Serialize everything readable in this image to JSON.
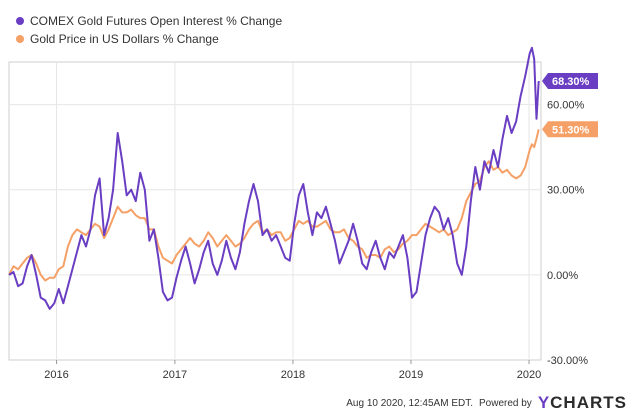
{
  "chart_data": {
    "type": "line",
    "title": "",
    "xlabel": "",
    "ylabel": "",
    "x_range": [
      "2015-08-07",
      "2020-02-07"
    ],
    "ylim": [
      -30,
      75
    ],
    "y_ticks": [
      -30,
      0,
      30,
      60
    ],
    "y_tick_labels": [
      "-30.00%",
      "0.00%",
      "30.00%",
      "60.00%"
    ],
    "x_ticks": [
      "2016-01-01",
      "2017-01-01",
      "2018-01-01",
      "2019-01-01",
      "2020-01-01"
    ],
    "x_tick_labels": [
      "2016",
      "2017",
      "2018",
      "2019",
      "2020"
    ],
    "grid": true,
    "legend_position": "top-left",
    "series": [
      {
        "name": "COMEX Gold Futures Open Interest % Change",
        "color": "#6a3ec2",
        "end_label": "68.30%",
        "points": [
          [
            "2015-08-07",
            0
          ],
          [
            "2015-08-21",
            1
          ],
          [
            "2015-09-04",
            -4
          ],
          [
            "2015-09-18",
            -3
          ],
          [
            "2015-10-02",
            3
          ],
          [
            "2015-10-16",
            7
          ],
          [
            "2015-10-30",
            0
          ],
          [
            "2015-11-13",
            -8
          ],
          [
            "2015-11-27",
            -9
          ],
          [
            "2015-12-11",
            -12
          ],
          [
            "2015-12-25",
            -10
          ],
          [
            "2016-01-08",
            -5
          ],
          [
            "2016-01-22",
            -10
          ],
          [
            "2016-02-05",
            -4
          ],
          [
            "2016-02-19",
            2
          ],
          [
            "2016-03-04",
            8
          ],
          [
            "2016-03-18",
            14
          ],
          [
            "2016-04-01",
            10
          ],
          [
            "2016-04-15",
            16
          ],
          [
            "2016-04-29",
            28
          ],
          [
            "2016-05-13",
            34
          ],
          [
            "2016-05-27",
            14
          ],
          [
            "2016-06-10",
            20
          ],
          [
            "2016-06-24",
            30
          ],
          [
            "2016-07-08",
            50
          ],
          [
            "2016-07-22",
            40
          ],
          [
            "2016-08-05",
            28
          ],
          [
            "2016-08-19",
            30
          ],
          [
            "2016-09-02",
            26
          ],
          [
            "2016-09-16",
            36
          ],
          [
            "2016-09-30",
            30
          ],
          [
            "2016-10-14",
            12
          ],
          [
            "2016-10-28",
            16
          ],
          [
            "2016-11-11",
            6
          ],
          [
            "2016-11-25",
            -6
          ],
          [
            "2016-12-09",
            -9
          ],
          [
            "2016-12-23",
            -8
          ],
          [
            "2017-01-06",
            -1
          ],
          [
            "2017-01-20",
            5
          ],
          [
            "2017-02-03",
            10
          ],
          [
            "2017-02-17",
            4
          ],
          [
            "2017-03-03",
            -3
          ],
          [
            "2017-03-17",
            2
          ],
          [
            "2017-03-31",
            8
          ],
          [
            "2017-04-14",
            12
          ],
          [
            "2017-04-28",
            4
          ],
          [
            "2017-05-12",
            0
          ],
          [
            "2017-05-26",
            5
          ],
          [
            "2017-06-09",
            12
          ],
          [
            "2017-06-23",
            6
          ],
          [
            "2017-07-07",
            2
          ],
          [
            "2017-07-21",
            8
          ],
          [
            "2017-08-04",
            18
          ],
          [
            "2017-08-18",
            26
          ],
          [
            "2017-09-01",
            32
          ],
          [
            "2017-09-15",
            26
          ],
          [
            "2017-09-29",
            14
          ],
          [
            "2017-10-13",
            16
          ],
          [
            "2017-10-27",
            12
          ],
          [
            "2017-11-10",
            14
          ],
          [
            "2017-11-24",
            10
          ],
          [
            "2017-12-08",
            6
          ],
          [
            "2017-12-22",
            5
          ],
          [
            "2018-01-05",
            18
          ],
          [
            "2018-01-19",
            28
          ],
          [
            "2018-02-02",
            32
          ],
          [
            "2018-02-16",
            22
          ],
          [
            "2018-03-02",
            14
          ],
          [
            "2018-03-16",
            22
          ],
          [
            "2018-03-30",
            20
          ],
          [
            "2018-04-13",
            24
          ],
          [
            "2018-04-27",
            18
          ],
          [
            "2018-05-11",
            12
          ],
          [
            "2018-05-25",
            4
          ],
          [
            "2018-06-08",
            8
          ],
          [
            "2018-06-22",
            12
          ],
          [
            "2018-07-06",
            18
          ],
          [
            "2018-07-20",
            12
          ],
          [
            "2018-08-03",
            4
          ],
          [
            "2018-08-17",
            2
          ],
          [
            "2018-08-31",
            8
          ],
          [
            "2018-09-14",
            12
          ],
          [
            "2018-09-28",
            6
          ],
          [
            "2018-10-12",
            2
          ],
          [
            "2018-10-26",
            8
          ],
          [
            "2018-11-09",
            6
          ],
          [
            "2018-11-23",
            10
          ],
          [
            "2018-12-07",
            14
          ],
          [
            "2018-12-21",
            6
          ],
          [
            "2019-01-04",
            -8
          ],
          [
            "2019-01-18",
            -6
          ],
          [
            "2019-02-01",
            4
          ],
          [
            "2019-02-15",
            14
          ],
          [
            "2019-03-01",
            20
          ],
          [
            "2019-03-15",
            24
          ],
          [
            "2019-03-29",
            22
          ],
          [
            "2019-04-12",
            16
          ],
          [
            "2019-04-26",
            20
          ],
          [
            "2019-05-10",
            14
          ],
          [
            "2019-05-24",
            4
          ],
          [
            "2019-06-07",
            0
          ],
          [
            "2019-06-21",
            10
          ],
          [
            "2019-07-05",
            26
          ],
          [
            "2019-07-19",
            38
          ],
          [
            "2019-08-02",
            30
          ],
          [
            "2019-08-16",
            40
          ],
          [
            "2019-08-30",
            36
          ],
          [
            "2019-09-13",
            44
          ],
          [
            "2019-09-27",
            38
          ],
          [
            "2019-10-11",
            48
          ],
          [
            "2019-10-25",
            56
          ],
          [
            "2019-11-08",
            50
          ],
          [
            "2019-11-22",
            54
          ],
          [
            "2019-12-06",
            63
          ],
          [
            "2019-12-20",
            70
          ],
          [
            "2020-01-03",
            78
          ],
          [
            "2020-01-10",
            80
          ],
          [
            "2020-01-17",
            76
          ],
          [
            "2020-01-24",
            55
          ],
          [
            "2020-01-31",
            68.3
          ]
        ]
      },
      {
        "name": "Gold Price in US Dollars % Change",
        "color": "#f5a066",
        "end_label": "51.30%",
        "points": [
          [
            "2015-08-07",
            0
          ],
          [
            "2015-08-21",
            3
          ],
          [
            "2015-09-04",
            2
          ],
          [
            "2015-09-18",
            4
          ],
          [
            "2015-10-02",
            6
          ],
          [
            "2015-10-16",
            7
          ],
          [
            "2015-10-30",
            4
          ],
          [
            "2015-11-13",
            0
          ],
          [
            "2015-11-27",
            -2
          ],
          [
            "2015-12-11",
            -1
          ],
          [
            "2015-12-25",
            -1
          ],
          [
            "2016-01-08",
            2
          ],
          [
            "2016-01-22",
            3
          ],
          [
            "2016-02-05",
            10
          ],
          [
            "2016-02-19",
            14
          ],
          [
            "2016-03-04",
            16
          ],
          [
            "2016-03-18",
            15
          ],
          [
            "2016-04-01",
            14
          ],
          [
            "2016-04-15",
            16
          ],
          [
            "2016-04-29",
            18
          ],
          [
            "2016-05-13",
            17
          ],
          [
            "2016-05-27",
            13
          ],
          [
            "2016-06-10",
            16
          ],
          [
            "2016-06-24",
            20
          ],
          [
            "2016-07-08",
            24
          ],
          [
            "2016-07-22",
            22
          ],
          [
            "2016-08-05",
            22
          ],
          [
            "2016-08-19",
            23
          ],
          [
            "2016-09-02",
            21
          ],
          [
            "2016-09-16",
            20
          ],
          [
            "2016-09-30",
            20
          ],
          [
            "2016-10-14",
            16
          ],
          [
            "2016-10-28",
            16
          ],
          [
            "2016-11-11",
            10
          ],
          [
            "2016-11-25",
            6
          ],
          [
            "2016-12-09",
            5
          ],
          [
            "2016-12-23",
            4
          ],
          [
            "2017-01-06",
            7
          ],
          [
            "2017-01-20",
            9
          ],
          [
            "2017-02-03",
            11
          ],
          [
            "2017-02-17",
            13
          ],
          [
            "2017-03-03",
            11
          ],
          [
            "2017-03-17",
            10
          ],
          [
            "2017-03-31",
            12
          ],
          [
            "2017-04-14",
            15
          ],
          [
            "2017-04-28",
            13
          ],
          [
            "2017-05-12",
            10
          ],
          [
            "2017-05-26",
            12
          ],
          [
            "2017-06-09",
            14
          ],
          [
            "2017-06-23",
            12
          ],
          [
            "2017-07-07",
            10
          ],
          [
            "2017-07-21",
            11
          ],
          [
            "2017-08-04",
            13
          ],
          [
            "2017-08-18",
            16
          ],
          [
            "2017-09-01",
            18
          ],
          [
            "2017-09-15",
            19
          ],
          [
            "2017-09-29",
            15
          ],
          [
            "2017-10-13",
            16
          ],
          [
            "2017-10-27",
            14
          ],
          [
            "2017-11-10",
            15
          ],
          [
            "2017-11-24",
            15
          ],
          [
            "2017-12-08",
            12
          ],
          [
            "2017-12-22",
            13
          ],
          [
            "2018-01-05",
            16
          ],
          [
            "2018-01-19",
            19
          ],
          [
            "2018-02-02",
            18
          ],
          [
            "2018-02-16",
            19
          ],
          [
            "2018-03-02",
            17
          ],
          [
            "2018-03-16",
            17
          ],
          [
            "2018-03-30",
            18
          ],
          [
            "2018-04-13",
            19
          ],
          [
            "2018-04-27",
            16
          ],
          [
            "2018-05-11",
            15
          ],
          [
            "2018-05-25",
            15
          ],
          [
            "2018-06-08",
            16
          ],
          [
            "2018-06-22",
            13
          ],
          [
            "2018-07-06",
            12
          ],
          [
            "2018-07-20",
            10
          ],
          [
            "2018-08-03",
            9
          ],
          [
            "2018-08-17",
            6
          ],
          [
            "2018-08-31",
            7
          ],
          [
            "2018-09-14",
            7
          ],
          [
            "2018-09-28",
            6
          ],
          [
            "2018-10-12",
            9
          ],
          [
            "2018-10-26",
            10
          ],
          [
            "2018-11-09",
            8
          ],
          [
            "2018-11-23",
            9
          ],
          [
            "2018-12-07",
            11
          ],
          [
            "2018-12-21",
            12
          ],
          [
            "2019-01-04",
            14
          ],
          [
            "2019-01-18",
            14
          ],
          [
            "2019-02-01",
            16
          ],
          [
            "2019-02-15",
            18
          ],
          [
            "2019-03-01",
            17
          ],
          [
            "2019-03-15",
            16
          ],
          [
            "2019-03-29",
            15
          ],
          [
            "2019-04-12",
            16
          ],
          [
            "2019-04-26",
            14
          ],
          [
            "2019-05-10",
            15
          ],
          [
            "2019-05-24",
            16
          ],
          [
            "2019-06-07",
            20
          ],
          [
            "2019-06-21",
            26
          ],
          [
            "2019-07-05",
            29
          ],
          [
            "2019-07-19",
            32
          ],
          [
            "2019-08-02",
            33
          ],
          [
            "2019-08-16",
            38
          ],
          [
            "2019-08-30",
            40
          ],
          [
            "2019-09-13",
            37
          ],
          [
            "2019-09-27",
            38
          ],
          [
            "2019-10-11",
            36
          ],
          [
            "2019-10-25",
            37
          ],
          [
            "2019-11-08",
            35
          ],
          [
            "2019-11-22",
            34
          ],
          [
            "2019-12-06",
            35
          ],
          [
            "2019-12-20",
            38
          ],
          [
            "2020-01-03",
            44
          ],
          [
            "2020-01-10",
            46
          ],
          [
            "2020-01-17",
            45
          ],
          [
            "2020-01-24",
            48
          ],
          [
            "2020-01-31",
            51.3
          ]
        ]
      }
    ]
  },
  "footer": {
    "date_text": "Aug 10 2020, 12:45AM EDT.",
    "powered_by": "Powered by",
    "brand_y": "Y",
    "brand_rest": "CHARTS"
  }
}
